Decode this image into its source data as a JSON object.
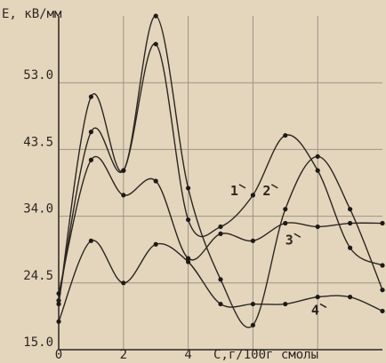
{
  "chart_data": {
    "type": "line",
    "title": "",
    "ylabel": "E, кВ/мм",
    "xlabel": "C,г/100г смолы",
    "xlim": [
      0,
      10
    ],
    "ylim": [
      15.0,
      62.5
    ],
    "grid": true,
    "y_ticks": [
      {
        "value": 15.0,
        "label": "15.0"
      },
      {
        "value": 24.5,
        "label": "24.5"
      },
      {
        "value": 34.0,
        "label": "34.0"
      },
      {
        "value": 43.5,
        "label": "43.5"
      },
      {
        "value": 53.0,
        "label": "53.0"
      }
    ],
    "x_ticks": [
      {
        "value": 0,
        "label": "0"
      },
      {
        "value": 2,
        "label": "2"
      },
      {
        "value": 4,
        "label": "4"
      }
    ],
    "series": [
      {
        "name": "1",
        "x": [
          0,
          1,
          2,
          3,
          4,
          5,
          6,
          7,
          8,
          9,
          10
        ],
        "y": [
          22.0,
          46.0,
          40.5,
          58.5,
          33.5,
          32.5,
          37.0,
          45.5,
          40.5,
          29.5,
          27.0
        ]
      },
      {
        "name": "2",
        "x": [
          0,
          1,
          2,
          3,
          4,
          5,
          6,
          7,
          8,
          9,
          10
        ],
        "y": [
          21.5,
          51.0,
          40.5,
          62.5,
          38.0,
          25.0,
          18.5,
          35.0,
          42.5,
          35.0,
          23.5
        ]
      },
      {
        "name": "3",
        "x": [
          0,
          1,
          2,
          3,
          4,
          5,
          6,
          7,
          8,
          9,
          10
        ],
        "y": [
          23.0,
          42.0,
          37.0,
          39.0,
          28.0,
          31.5,
          30.5,
          33.0,
          32.5,
          33.0,
          33.0
        ]
      },
      {
        "name": "4",
        "x": [
          0,
          1,
          2,
          3,
          4,
          5,
          6,
          7,
          8,
          9,
          10
        ],
        "y": [
          19.0,
          30.5,
          24.5,
          30.0,
          27.5,
          21.5,
          21.5,
          21.5,
          22.5,
          22.5,
          20.5
        ]
      }
    ],
    "annotations": [
      {
        "text": "1",
        "x": 5.3,
        "y": 37.0
      },
      {
        "text": "2",
        "x": 6.3,
        "y": 37.0
      },
      {
        "text": "3",
        "x": 7.0,
        "y": 30.0
      },
      {
        "text": "4",
        "x": 7.8,
        "y": 20.0
      }
    ]
  }
}
